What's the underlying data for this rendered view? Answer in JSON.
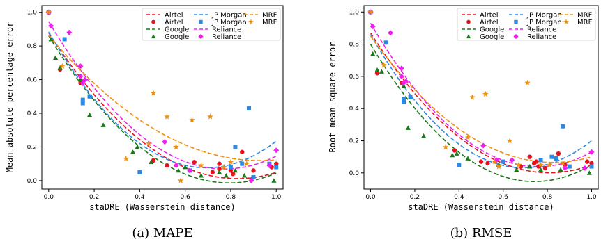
{
  "colors": {
    "Airtel": "#e8121f",
    "Google": "#1a7a1a",
    "JP Morgan": "#2a8ae6",
    "Reliance": "#f01ff0",
    "MRF": "#f0900a"
  },
  "chart_data": [
    {
      "type": "scatter",
      "caption": "(a) MAPE",
      "xlabel": "staDRE (Wasserstein distance)",
      "ylabel": "Mean absolute percentage error",
      "xlim": [
        -0.03,
        1.03
      ],
      "ylim": [
        -0.05,
        1.04
      ],
      "xticks": [
        "0.0",
        "0.2",
        "0.4",
        "0.6",
        "0.8",
        "1.0"
      ],
      "yticks": [
        "0.0",
        "0.2",
        "0.4",
        "0.6",
        "0.8",
        "1.0"
      ],
      "legend_position": "top-right",
      "legend": [
        {
          "label": "Airtel",
          "kind": "line",
          "series": "Airtel"
        },
        {
          "label": "Airtel",
          "kind": "marker",
          "series": "Airtel"
        },
        {
          "label": "Google",
          "kind": "line",
          "series": "Google"
        },
        {
          "label": "Google",
          "kind": "marker",
          "series": "Google"
        },
        {
          "label": "JP Morgan",
          "kind": "line",
          "series": "JP Morgan"
        },
        {
          "label": "JP Morgan",
          "kind": "marker",
          "series": "JP Morgan"
        },
        {
          "label": "Reliance",
          "kind": "line",
          "series": "Reliance"
        },
        {
          "label": "Reliance",
          "kind": "marker",
          "series": "Reliance"
        },
        {
          "label": "MRF",
          "kind": "line",
          "series": "MRF"
        },
        {
          "label": "MRF",
          "kind": "marker",
          "series": "MRF"
        }
      ],
      "series": [
        {
          "name": "Airtel",
          "marker": "circle",
          "points": [
            [
              0.0,
              1.0
            ],
            [
              0.05,
              0.66
            ],
            [
              0.14,
              0.58
            ],
            [
              0.46,
              0.12
            ],
            [
              0.52,
              0.09
            ],
            [
              0.64,
              0.11
            ],
            [
              0.72,
              0.05
            ],
            [
              0.75,
              0.07
            ],
            [
              0.75,
              0.1
            ],
            [
              0.8,
              0.06
            ],
            [
              0.81,
              0.04
            ],
            [
              0.85,
              0.17
            ],
            [
              0.9,
              0.06
            ],
            [
              0.98,
              0.08
            ],
            [
              1.0,
              0.1
            ]
          ],
          "fit": [
            0.878,
            -2.09,
            1.261
          ]
        },
        {
          "name": "Google",
          "marker": "triangle",
          "points": [
            [
              0.01,
              0.84
            ],
            [
              0.03,
              0.73
            ],
            [
              0.05,
              0.67
            ],
            [
              0.14,
              0.6
            ],
            [
              0.18,
              0.39
            ],
            [
              0.24,
              0.33
            ],
            [
              0.37,
              0.17
            ],
            [
              0.39,
              0.2
            ],
            [
              0.45,
              0.11
            ],
            [
              0.57,
              0.06
            ],
            [
              0.6,
              0.08
            ],
            [
              0.67,
              0.03
            ],
            [
              0.75,
              0.05
            ],
            [
              0.78,
              0.03
            ],
            [
              0.82,
              0.06
            ],
            [
              0.86,
              0.03
            ],
            [
              0.89,
              0.01
            ],
            [
              0.99,
              0.0
            ]
          ],
          "fit": [
            0.86,
            -2.2,
            1.385
          ]
        },
        {
          "name": "JP Morgan",
          "marker": "square",
          "points": [
            [
              0.0,
              1.0
            ],
            [
              0.07,
              0.84
            ],
            [
              0.15,
              0.48
            ],
            [
              0.15,
              0.46
            ],
            [
              0.18,
              0.5
            ],
            [
              0.4,
              0.05
            ],
            [
              0.62,
              0.06
            ],
            [
              0.8,
              0.08
            ],
            [
              0.82,
              0.2
            ],
            [
              0.85,
              0.1
            ],
            [
              0.88,
              0.43
            ],
            [
              0.9,
              0.02
            ],
            [
              0.97,
              0.1
            ],
            [
              1.0,
              0.08
            ]
          ],
          "fit": [
            0.883,
            -2.327,
            1.678
          ]
        },
        {
          "name": "Reliance",
          "marker": "diamond",
          "points": [
            [
              0.0,
              1.0
            ],
            [
              0.01,
              0.92
            ],
            [
              0.09,
              0.88
            ],
            [
              0.14,
              0.62
            ],
            [
              0.14,
              0.68
            ],
            [
              0.15,
              0.58
            ],
            [
              0.16,
              0.6
            ],
            [
              0.51,
              0.23
            ],
            [
              0.56,
              0.09
            ],
            [
              0.62,
              0.06
            ],
            [
              0.89,
              0.0
            ],
            [
              0.97,
              0.09
            ],
            [
              1.0,
              0.18
            ]
          ],
          "fit": [
            0.945,
            -2.267,
            1.467
          ]
        },
        {
          "name": "MRF",
          "marker": "star",
          "points": [
            [
              0.0,
              1.0
            ],
            [
              0.06,
              0.68
            ],
            [
              0.34,
              0.13
            ],
            [
              0.44,
              0.22
            ],
            [
              0.46,
              0.52
            ],
            [
              0.52,
              0.38
            ],
            [
              0.56,
              0.2
            ],
            [
              0.58,
              0.0
            ],
            [
              0.63,
              0.36
            ],
            [
              0.67,
              0.09
            ],
            [
              0.71,
              0.38
            ],
            [
              0.77,
              0.08
            ],
            [
              0.8,
              0.11
            ],
            [
              0.87,
              0.1
            ]
          ],
          "fit": [
            0.863,
            -1.6,
            0.86
          ]
        }
      ]
    },
    {
      "type": "scatter",
      "caption": "(b) RMSE",
      "xlabel": "staDRE (Wasserstein distance)",
      "ylabel": "Root mean square error",
      "xlim": [
        -0.03,
        1.03
      ],
      "ylim": [
        -0.1,
        1.04
      ],
      "xticks": [
        "0.0",
        "0.2",
        "0.4",
        "0.6",
        "0.8",
        "1.0"
      ],
      "yticks": [
        "0.0",
        "0.2",
        "0.4",
        "0.6",
        "0.8",
        "1.0"
      ],
      "legend_position": "top-right",
      "legend": [
        {
          "label": "Airtel",
          "kind": "line",
          "series": "Airtel"
        },
        {
          "label": "Airtel",
          "kind": "marker",
          "series": "Airtel"
        },
        {
          "label": "Google",
          "kind": "line",
          "series": "Google"
        },
        {
          "label": "Google",
          "kind": "marker",
          "series": "Google"
        },
        {
          "label": "JP Morgan",
          "kind": "line",
          "series": "JP Morgan"
        },
        {
          "label": "JP Morgan",
          "kind": "marker",
          "series": "JP Morgan"
        },
        {
          "label": "Reliance",
          "kind": "line",
          "series": "Reliance"
        },
        {
          "label": "Reliance",
          "kind": "marker",
          "series": "Reliance"
        },
        {
          "label": "MRF",
          "kind": "line",
          "series": "MRF"
        },
        {
          "label": "MRF",
          "kind": "marker",
          "series": "MRF"
        }
      ],
      "series": [
        {
          "name": "Airtel",
          "marker": "circle",
          "points": [
            [
              0.0,
              1.0
            ],
            [
              0.03,
              0.62
            ],
            [
              0.14,
              0.56
            ],
            [
              0.38,
              0.14
            ],
            [
              0.5,
              0.07
            ],
            [
              0.53,
              0.06
            ],
            [
              0.68,
              0.04
            ],
            [
              0.72,
              0.1
            ],
            [
              0.74,
              0.06
            ],
            [
              0.75,
              0.07
            ],
            [
              0.76,
              0.04
            ],
            [
              0.79,
              0.03
            ],
            [
              0.85,
              0.12
            ],
            [
              0.88,
              0.05
            ],
            [
              0.98,
              0.07
            ],
            [
              1.0,
              0.06
            ]
          ],
          "fit": [
            0.87,
            -2.15,
            1.33
          ]
        },
        {
          "name": "Google",
          "marker": "triangle",
          "points": [
            [
              0.01,
              0.74
            ],
            [
              0.03,
              0.64
            ],
            [
              0.05,
              0.63
            ],
            [
              0.15,
              0.54
            ],
            [
              0.17,
              0.28
            ],
            [
              0.24,
              0.23
            ],
            [
              0.37,
              0.11
            ],
            [
              0.39,
              0.12
            ],
            [
              0.44,
              0.09
            ],
            [
              0.58,
              0.05
            ],
            [
              0.66,
              0.02
            ],
            [
              0.72,
              0.04
            ],
            [
              0.77,
              0.02
            ],
            [
              0.86,
              0.02
            ],
            [
              0.99,
              0.0
            ]
          ],
          "fit": [
            0.8,
            -2.3,
            1.55
          ]
        },
        {
          "name": "JP Morgan",
          "marker": "square",
          "points": [
            [
              0.0,
              1.0
            ],
            [
              0.07,
              0.81
            ],
            [
              0.15,
              0.46
            ],
            [
              0.15,
              0.44
            ],
            [
              0.18,
              0.47
            ],
            [
              0.4,
              0.05
            ],
            [
              0.6,
              0.07
            ],
            [
              0.77,
              0.08
            ],
            [
              0.82,
              0.1
            ],
            [
              0.84,
              0.09
            ],
            [
              0.87,
              0.29
            ],
            [
              0.9,
              0.04
            ],
            [
              1.0,
              0.04
            ]
          ],
          "fit": [
            0.86,
            -2.4,
            1.74
          ]
        },
        {
          "name": "Reliance",
          "marker": "diamond",
          "points": [
            [
              0.0,
              1.0
            ],
            [
              0.01,
              0.91
            ],
            [
              0.09,
              0.87
            ],
            [
              0.14,
              0.6
            ],
            [
              0.14,
              0.65
            ],
            [
              0.15,
              0.56
            ],
            [
              0.16,
              0.57
            ],
            [
              0.51,
              0.17
            ],
            [
              0.57,
              0.08
            ],
            [
              0.64,
              0.08
            ],
            [
              0.88,
              0.03
            ],
            [
              0.97,
              0.03
            ],
            [
              1.0,
              0.13
            ]
          ],
          "fit": [
            0.93,
            -2.35,
            1.55
          ]
        },
        {
          "name": "MRF",
          "marker": "star",
          "points": [
            [
              0.0,
              1.0
            ],
            [
              0.06,
              0.67
            ],
            [
              0.34,
              0.16
            ],
            [
              0.44,
              0.22
            ],
            [
              0.46,
              0.47
            ],
            [
              0.52,
              0.49
            ],
            [
              0.56,
              0.07
            ],
            [
              0.58,
              0.04
            ],
            [
              0.63,
              0.2
            ],
            [
              0.67,
              0.05
            ],
            [
              0.71,
              0.56
            ],
            [
              0.77,
              0.05
            ],
            [
              0.81,
              0.05
            ],
            [
              0.87,
              0.06
            ]
          ],
          "fit": [
            0.85,
            -1.9,
            1.15
          ]
        }
      ]
    }
  ]
}
